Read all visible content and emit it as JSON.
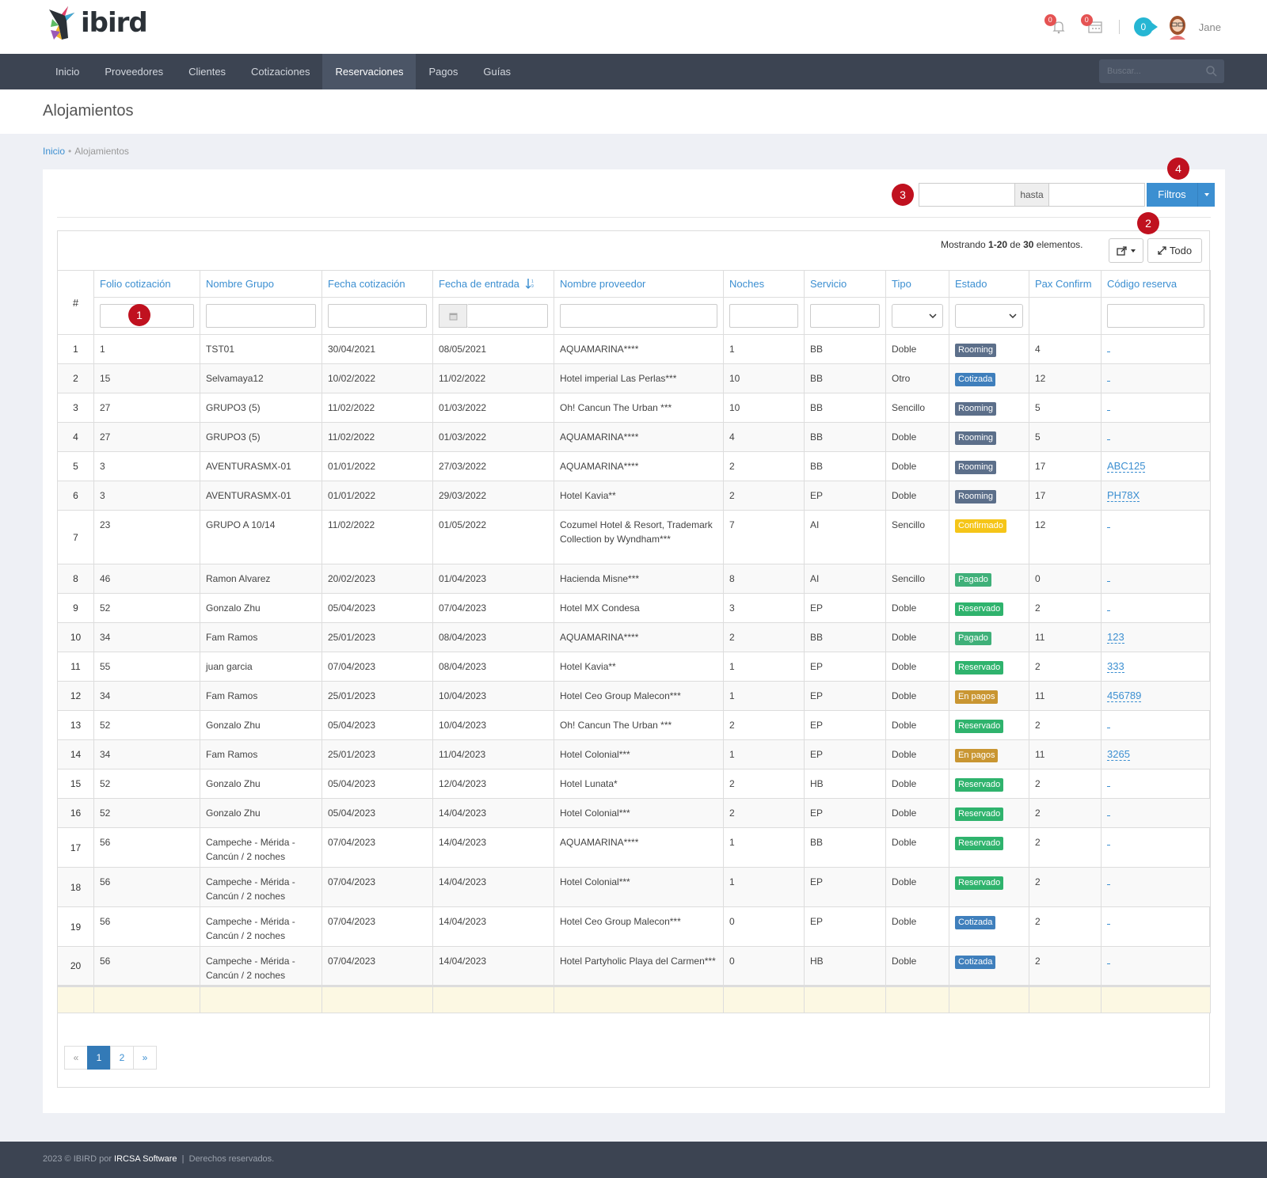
{
  "app": {
    "logo_text": "ibird",
    "user_name": "Jane",
    "bell_count": "0",
    "calendar_count": "0",
    "cart_count": "0"
  },
  "nav": {
    "items": [
      {
        "label": "Inicio"
      },
      {
        "label": "Proveedores"
      },
      {
        "label": "Clientes"
      },
      {
        "label": "Cotizaciones"
      },
      {
        "label": "Reservaciones",
        "active": true
      },
      {
        "label": "Pagos"
      },
      {
        "label": "Guías"
      }
    ],
    "search_placeholder": "Buscar..."
  },
  "page": {
    "title": "Alojamientos"
  },
  "breadcrumb": {
    "home": "Inicio",
    "current": "Alojamientos"
  },
  "filters": {
    "hasta": "hasta",
    "filtros_label": "Filtros"
  },
  "markers": [
    "1",
    "2",
    "3",
    "4"
  ],
  "summary": {
    "prefix": "Mostrando ",
    "range": "1-20",
    "mid": " de ",
    "total": "30",
    "suffix": " elementos."
  },
  "toolbar": {
    "todo_label": "Todo"
  },
  "table": {
    "columns": [
      "#",
      "Folio cotización",
      "Nombre Grupo",
      "Fecha cotización",
      "Fecha de entrada",
      "Nombre proveedor",
      "Noches",
      "Servicio",
      "Tipo",
      "Estado",
      "Pax Confirm",
      "Código reserva"
    ],
    "rows": [
      {
        "n": "1",
        "folio": "1",
        "grupo": "TST01",
        "fcot": "30/04/2021",
        "fent": "08/05/2021",
        "prov": "AQUAMARINA****",
        "noches": "1",
        "serv": "BB",
        "tipo": "Doble",
        "estado": "Rooming",
        "pax": "4",
        "codigo": ""
      },
      {
        "n": "2",
        "folio": "15",
        "grupo": "Selvamaya12",
        "fcot": "10/02/2022",
        "fent": "11/02/2022",
        "prov": "Hotel imperial Las Perlas***",
        "noches": "10",
        "serv": "BB",
        "tipo": "Otro",
        "estado": "Cotizada",
        "pax": "12",
        "codigo": ""
      },
      {
        "n": "3",
        "folio": "27",
        "grupo": "GRUPO3 (5)",
        "fcot": "11/02/2022",
        "fent": "01/03/2022",
        "prov": "Oh! Cancun The Urban ***",
        "noches": "10",
        "serv": "BB",
        "tipo": "Sencillo",
        "estado": "Rooming",
        "pax": "5",
        "codigo": ""
      },
      {
        "n": "4",
        "folio": "27",
        "grupo": "GRUPO3 (5)",
        "fcot": "11/02/2022",
        "fent": "01/03/2022",
        "prov": "AQUAMARINA****",
        "noches": "4",
        "serv": "BB",
        "tipo": "Doble",
        "estado": "Rooming",
        "pax": "5",
        "codigo": ""
      },
      {
        "n": "5",
        "folio": "3",
        "grupo": "AVENTURASMX-01",
        "fcot": "01/01/2022",
        "fent": "27/03/2022",
        "prov": "AQUAMARINA****",
        "noches": "2",
        "serv": "BB",
        "tipo": "Doble",
        "estado": "Rooming",
        "pax": "17",
        "codigo": "ABC125"
      },
      {
        "n": "6",
        "folio": "3",
        "grupo": "AVENTURASMX-01",
        "fcot": "01/01/2022",
        "fent": "29/03/2022",
        "prov": "Hotel Kavia**",
        "noches": "2",
        "serv": "EP",
        "tipo": "Doble",
        "estado": "Rooming",
        "pax": "17",
        "codigo": "PH78X"
      },
      {
        "n": "7",
        "folio": "23",
        "grupo": "GRUPO A 10/14",
        "fcot": "11/02/2022",
        "fent": "01/05/2022",
        "prov": "Cozumel Hotel & Resort, Trademark Collection by Wyndham***",
        "noches": "7",
        "serv": "AI",
        "tipo": "Sencillo",
        "estado": "Confirmado",
        "pax": "12",
        "codigo": ""
      },
      {
        "n": "8",
        "folio": "46",
        "grupo": "Ramon Alvarez",
        "fcot": "20/02/2023",
        "fent": "01/04/2023",
        "prov": "Hacienda Misne***",
        "noches": "8",
        "serv": "AI",
        "tipo": "Sencillo",
        "estado": "Pagado",
        "pax": "0",
        "codigo": ""
      },
      {
        "n": "9",
        "folio": "52",
        "grupo": "Gonzalo Zhu",
        "fcot": "05/04/2023",
        "fent": "07/04/2023",
        "prov": "Hotel MX Condesa",
        "noches": "3",
        "serv": "EP",
        "tipo": "Doble",
        "estado": "Reservado",
        "pax": "2",
        "codigo": ""
      },
      {
        "n": "10",
        "folio": "34",
        "grupo": "Fam Ramos",
        "fcot": "25/01/2023",
        "fent": "08/04/2023",
        "prov": "AQUAMARINA****",
        "noches": "2",
        "serv": "BB",
        "tipo": "Doble",
        "estado": "Pagado",
        "pax": "11",
        "codigo": "123"
      },
      {
        "n": "11",
        "folio": "55",
        "grupo": "juan garcia",
        "fcot": "07/04/2023",
        "fent": "08/04/2023",
        "prov": "Hotel Kavia**",
        "noches": "1",
        "serv": "EP",
        "tipo": "Doble",
        "estado": "Reservado",
        "pax": "2",
        "codigo": "333"
      },
      {
        "n": "12",
        "folio": "34",
        "grupo": "Fam Ramos",
        "fcot": "25/01/2023",
        "fent": "10/04/2023",
        "prov": "Hotel Ceo Group Malecon***",
        "noches": "1",
        "serv": "EP",
        "tipo": "Doble",
        "estado": "En pagos",
        "pax": "11",
        "codigo": "456789"
      },
      {
        "n": "13",
        "folio": "52",
        "grupo": "Gonzalo Zhu",
        "fcot": "05/04/2023",
        "fent": "10/04/2023",
        "prov": "Oh! Cancun The Urban ***",
        "noches": "2",
        "serv": "EP",
        "tipo": "Doble",
        "estado": "Reservado",
        "pax": "2",
        "codigo": ""
      },
      {
        "n": "14",
        "folio": "34",
        "grupo": "Fam Ramos",
        "fcot": "25/01/2023",
        "fent": "11/04/2023",
        "prov": "Hotel Colonial***",
        "noches": "1",
        "serv": "EP",
        "tipo": "Doble",
        "estado": "En pagos",
        "pax": "11",
        "codigo": "3265"
      },
      {
        "n": "15",
        "folio": "52",
        "grupo": "Gonzalo Zhu",
        "fcot": "05/04/2023",
        "fent": "12/04/2023",
        "prov": "Hotel Lunata*",
        "noches": "2",
        "serv": "HB",
        "tipo": "Doble",
        "estado": "Reservado",
        "pax": "2",
        "codigo": ""
      },
      {
        "n": "16",
        "folio": "52",
        "grupo": "Gonzalo Zhu",
        "fcot": "05/04/2023",
        "fent": "14/04/2023",
        "prov": "Hotel Colonial***",
        "noches": "2",
        "serv": "EP",
        "tipo": "Doble",
        "estado": "Reservado",
        "pax": "2",
        "codigo": ""
      },
      {
        "n": "17",
        "folio": "56",
        "grupo": "Campeche - Mérida - Cancún / 2 noches",
        "fcot": "07/04/2023",
        "fent": "14/04/2023",
        "prov": "AQUAMARINA****",
        "noches": "1",
        "serv": "BB",
        "tipo": "Doble",
        "estado": "Reservado",
        "pax": "2",
        "codigo": ""
      },
      {
        "n": "18",
        "folio": "56",
        "grupo": "Campeche - Mérida - Cancún / 2 noches",
        "fcot": "07/04/2023",
        "fent": "14/04/2023",
        "prov": "Hotel Colonial***",
        "noches": "1",
        "serv": "EP",
        "tipo": "Doble",
        "estado": "Reservado",
        "pax": "2",
        "codigo": ""
      },
      {
        "n": "19",
        "folio": "56",
        "grupo": "Campeche - Mérida - Cancún / 2 noches",
        "fcot": "07/04/2023",
        "fent": "14/04/2023",
        "prov": "Hotel Ceo Group Malecon***",
        "noches": "0",
        "serv": "EP",
        "tipo": "Doble",
        "estado": "Cotizada",
        "pax": "2",
        "codigo": ""
      },
      {
        "n": "20",
        "folio": "56",
        "grupo": "Campeche - Mérida - Cancún / 2 noches",
        "fcot": "07/04/2023",
        "fent": "14/04/2023",
        "prov": "Hotel Partyholic Playa del Carmen***",
        "noches": "0",
        "serv": "HB",
        "tipo": "Doble",
        "estado": "Cotizada",
        "pax": "2",
        "codigo": ""
      }
    ]
  },
  "status_colors": {
    "Rooming": "#5c6f8a",
    "Cotizada": "#3f7fbc",
    "Confirmado": "#f5c518",
    "Pagado": "#3fb079",
    "Reservado": "#2fb36d",
    "En pagos": "#c99632"
  },
  "pagination": {
    "prev": "«",
    "pages": [
      "1",
      "2"
    ],
    "current": "1",
    "next": "»"
  },
  "footer": {
    "prefix": "2023 © IBIRD por ",
    "brand": "IRCSA Software",
    "sep": "  |  ",
    "rights": "Derechos reservados."
  }
}
